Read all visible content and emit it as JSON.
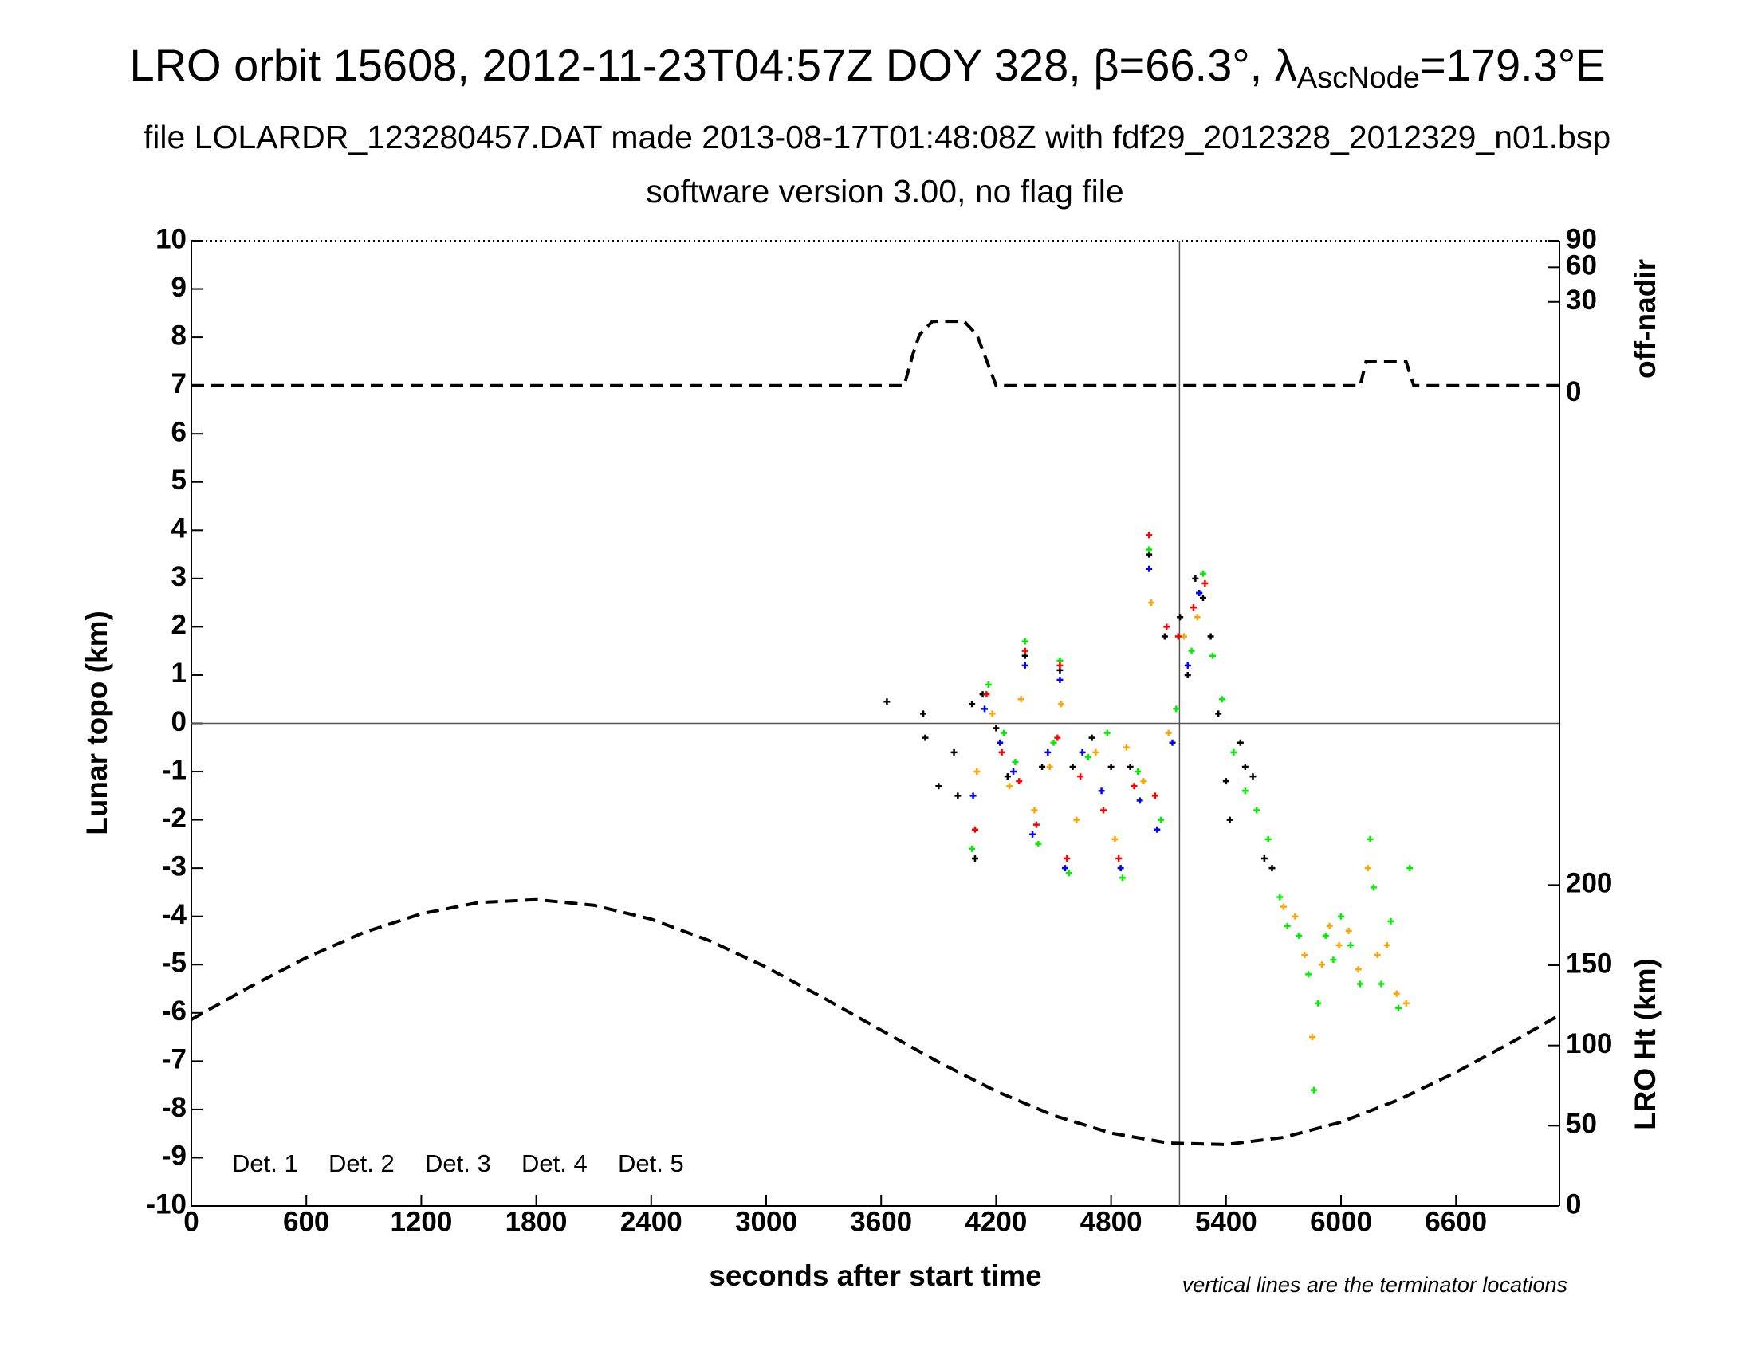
{
  "chart_data": {
    "type": "scatter",
    "title": {
      "text": "LRO orbit 15608, 2012-11-23T04:57Z DOY 328, β=66.3°, λ",
      "subscript": "AscNode",
      "suffix": "=179.3°E"
    },
    "subtitle": [
      "file LOLARDR_123280457.DAT made 2013-08-17T01:48:08Z with fdf29_2012328_2012329_n01.bsp",
      "software version 3.00, no flag file"
    ],
    "xlabel": "seconds after start time",
    "ylabel": "Lunar topo (km)",
    "y2label": "off-nadir",
    "y3label": "LRO Ht (km)",
    "note": "vertical lines are the terminator locations",
    "xlim": [
      0,
      7140
    ],
    "xticks": [
      0,
      600,
      1200,
      1800,
      2400,
      3000,
      3600,
      4200,
      4800,
      5400,
      6000,
      6600
    ],
    "ylim": [
      -10,
      10
    ],
    "yticks": [
      -10,
      -9,
      -8,
      -7,
      -6,
      -5,
      -4,
      -3,
      -2,
      -1,
      0,
      1,
      2,
      3,
      4,
      5,
      6,
      7,
      8,
      9,
      10
    ],
    "y2lim": [
      0,
      90
    ],
    "y2ticks": [
      0,
      30,
      60,
      90
    ],
    "y2scale": "sqrt",
    "y3lim": [
      0,
      200
    ],
    "y3ticks": [
      0,
      50,
      100,
      150,
      200
    ],
    "terminators": [
      5157
    ],
    "series": [
      {
        "name": "Det. 1",
        "color": "#000000",
        "x": [
          3630,
          3820,
          3830,
          3900,
          3980,
          4000,
          4074,
          4090,
          4130,
          4200,
          4260,
          4351,
          4440,
          4533,
          4600,
          4700,
          4800,
          4900,
          4998,
          5080,
          5160,
          5200,
          5240,
          5260,
          5280,
          5320,
          5360,
          5400,
          5420,
          5475,
          5500,
          5540,
          5600,
          5640
        ],
        "values": [
          0.45,
          0.2,
          -0.3,
          -1.3,
          -0.6,
          -1.5,
          0.4,
          -2.8,
          0.6,
          -0.1,
          -1.1,
          1.4,
          -0.9,
          1.1,
          -0.9,
          -0.3,
          -0.9,
          -0.9,
          3.5,
          1.8,
          2.2,
          1.0,
          3.0,
          2.7,
          2.6,
          1.8,
          0.2,
          -1.2,
          -2.0,
          -0.4,
          -0.9,
          -1.1,
          -2.8,
          -3.0
        ]
      },
      {
        "name": "Det. 2",
        "color": "#0000ff",
        "x": [
          4080,
          4140,
          4220,
          4290,
          4351,
          4390,
          4470,
          4533,
          4560,
          4650,
          4750,
          4850,
          4950,
          4998,
          5040,
          5120,
          5200,
          5260
        ],
        "values": [
          -1.5,
          0.3,
          -0.4,
          -1.0,
          1.2,
          -2.3,
          -0.6,
          0.9,
          -3.0,
          -0.6,
          -1.4,
          -3.0,
          -1.6,
          3.2,
          -2.2,
          -0.4,
          1.2,
          2.7
        ]
      },
      {
        "name": "Det. 3",
        "color": "#00ee00",
        "x": [
          4074,
          4160,
          4240,
          4300,
          4351,
          4420,
          4500,
          4533,
          4580,
          4680,
          4780,
          4860,
          4940,
          4998,
          5060,
          5140,
          5220,
          5280,
          5330,
          5380,
          5440,
          5500,
          5560,
          5620,
          5681,
          5720,
          5780,
          5830,
          5858,
          5880,
          5920,
          5960,
          6000,
          6050,
          6100,
          6152,
          6170,
          6210,
          6260,
          6300,
          6359
        ],
        "values": [
          -2.6,
          0.8,
          -0.2,
          -0.8,
          1.7,
          -2.5,
          -0.4,
          1.3,
          -3.1,
          -0.7,
          -0.2,
          -3.2,
          -1.0,
          3.6,
          -2.0,
          0.3,
          1.5,
          3.1,
          1.4,
          0.5,
          -0.6,
          -1.4,
          -1.8,
          -2.4,
          -3.6,
          -4.2,
          -4.4,
          -5.2,
          -7.6,
          -5.8,
          -4.4,
          -4.9,
          -4.0,
          -4.6,
          -5.4,
          -2.4,
          -3.4,
          -5.4,
          -4.1,
          -5.9,
          -3.0
        ]
      },
      {
        "name": "Det. 4",
        "color": "#ffa500",
        "x": [
          4100,
          4180,
          4270,
          4330,
          4400,
          4480,
          4540,
          4620,
          4720,
          4820,
          4880,
          4970,
          5010,
          5100,
          5180,
          5250,
          5700,
          5760,
          5810,
          5850,
          5900,
          5940,
          5990,
          6040,
          6090,
          6140,
          6190,
          6240,
          6290,
          6340
        ],
        "values": [
          -1.0,
          0.2,
          -1.3,
          0.5,
          -1.8,
          -0.9,
          0.4,
          -2.0,
          -0.6,
          -2.4,
          -0.5,
          -1.2,
          2.5,
          -0.2,
          1.8,
          2.2,
          -3.8,
          -4.0,
          -4.8,
          -6.5,
          -5.0,
          -4.2,
          -4.6,
          -4.3,
          -5.1,
          -3.0,
          -4.8,
          -4.6,
          -5.6,
          -5.8
        ]
      },
      {
        "name": "Det. 5",
        "color": "#ff0000",
        "x": [
          4090,
          4150,
          4230,
          4320,
          4351,
          4410,
          4520,
          4533,
          4570,
          4640,
          4760,
          4840,
          4920,
          4998,
          5030,
          5090,
          5150,
          5230,
          5290
        ],
        "values": [
          -2.2,
          0.6,
          -0.6,
          -1.2,
          1.5,
          -2.1,
          -0.3,
          1.2,
          -2.8,
          -1.1,
          -1.8,
          -2.8,
          -1.3,
          3.9,
          -1.5,
          2.0,
          1.8,
          2.4,
          2.9
        ]
      }
    ],
    "lines": [
      {
        "axis": "y2",
        "color": "#000000",
        "x": [
          0,
          3720,
          3768,
          3800,
          3868,
          4033,
          4100,
          4157,
          4200,
          6100,
          6130,
          6340,
          6380,
          7140
        ],
        "values": [
          0,
          0,
          4.6,
          11,
          17.7,
          17.7,
          11,
          2,
          0,
          0,
          2.4,
          2.4,
          0,
          0
        ]
      },
      {
        "axis": "y3",
        "color": "#000000",
        "x": [
          0,
          300,
          600,
          900,
          1200,
          1500,
          1800,
          2100,
          2400,
          2700,
          3000,
          3300,
          3600,
          3900,
          4200,
          4500,
          4800,
          5100,
          5400,
          5700,
          6000,
          6300,
          6600,
          6900,
          7140
        ],
        "values": [
          116.2,
          136.2,
          154.7,
          170.4,
          182.1,
          189.1,
          190.9,
          187.4,
          178.7,
          165.5,
          148.8,
          129.6,
          109.5,
          89.6,
          71.5,
          56.4,
          45.4,
          39.2,
          38.3,
          42.7,
          52.2,
          66.1,
          83.3,
          102.6,
          118.9
        ]
      }
    ]
  }
}
